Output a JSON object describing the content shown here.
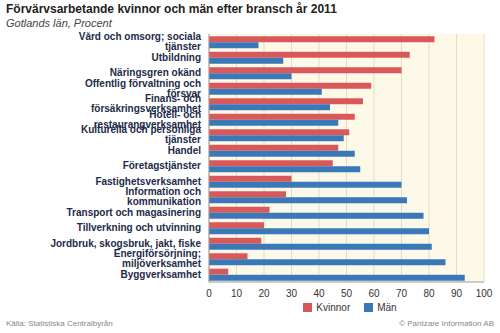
{
  "chart_data": {
    "type": "bar",
    "title": "Förvärvsarbetande kvinnor och män efter bransch år 2011",
    "subtitle": "Gotlands län, Procent",
    "source": "Källa: Statistiska Centralbyrån",
    "credit": "© Pantzare Information AB",
    "orientation": "horizontal",
    "grid": true,
    "legend": "bottom",
    "categories": [
      "Vård och omsorg; sociala tjänster",
      "Utbildning",
      "Näringsgren okänd",
      "Offentlig förvaltning och försvar",
      "Finans- och försäkringsverksamhet",
      "Hotell- och restaurangverksamhet",
      "Kulturella och personliga tjänster",
      "Handel",
      "Företagstjänster",
      "Fastighetsverksamhet",
      "Information och kommunikation",
      "Transport och magasinering",
      "Tillverkning och utvinning",
      "Jordbruk, skogsbruk, jakt, fiske",
      "Energiförsörjning; miljöverksamhet",
      "Byggverksamhet"
    ],
    "series": [
      {
        "name": "Kvinnor",
        "color": "#d9595b",
        "values": [
          82,
          73,
          70,
          59,
          56,
          53,
          51,
          47,
          45,
          30,
          28,
          22,
          20,
          19,
          14,
          7
        ]
      },
      {
        "name": "Män",
        "color": "#3b78b8",
        "values": [
          18,
          27,
          30,
          41,
          44,
          47,
          49,
          53,
          55,
          70,
          72,
          78,
          80,
          81,
          86,
          93
        ]
      }
    ],
    "xlim": [
      0,
      100
    ],
    "xticks": [
      0,
      10,
      20,
      30,
      40,
      50,
      60,
      70,
      80,
      90,
      100
    ]
  }
}
